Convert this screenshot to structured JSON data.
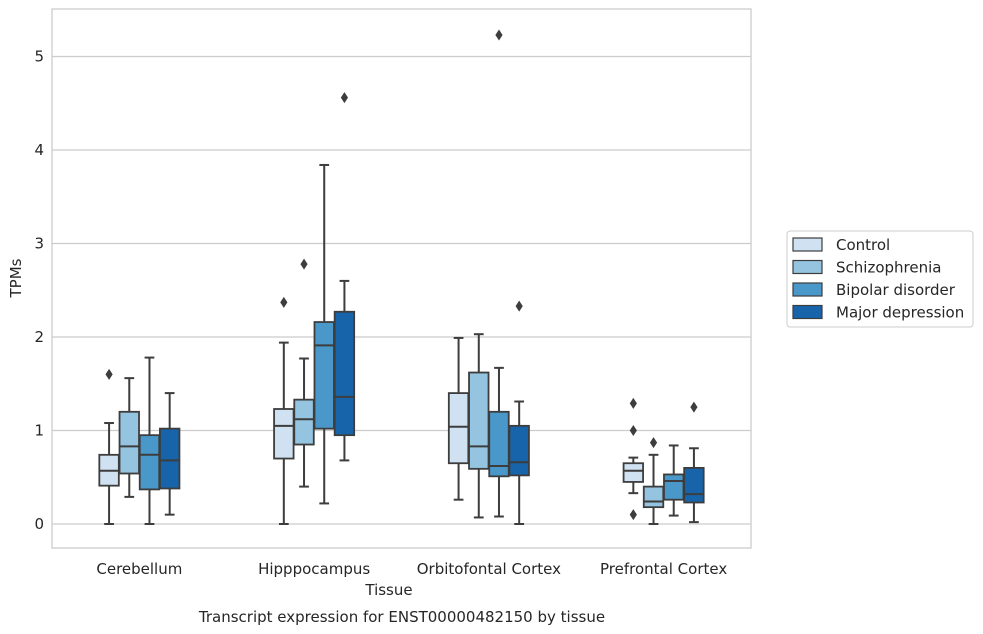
{
  "caption": "Transcript expression for ENST00000482150 by tissue",
  "chart_data": {
    "type": "box",
    "title": "",
    "xlabel": "Tissue",
    "ylabel": "TPMs",
    "ylim": [
      -0.25,
      5.5
    ],
    "yticks": [
      0,
      1,
      2,
      3,
      4,
      5
    ],
    "grid": true,
    "legend_position": "right",
    "categories": [
      "Cerebellum",
      "Hipppocampus",
      "Orbitofontal Cortex",
      "Prefrontal Cortex"
    ],
    "series": [
      {
        "name": "Control",
        "color": "#d0e1f2",
        "boxes": [
          {
            "whislo": 0.0,
            "q1": 0.41,
            "med": 0.57,
            "q3": 0.74,
            "whishi": 1.08,
            "fliers": [
              1.6
            ]
          },
          {
            "whislo": 0.0,
            "q1": 0.7,
            "med": 1.05,
            "q3": 1.23,
            "whishi": 1.94,
            "fliers": [
              2.37
            ]
          },
          {
            "whislo": 0.26,
            "q1": 0.65,
            "med": 1.04,
            "q3": 1.4,
            "whishi": 1.99,
            "fliers": []
          },
          {
            "whislo": 0.33,
            "q1": 0.45,
            "med": 0.57,
            "q3": 0.65,
            "whishi": 0.71,
            "fliers": [
              0.1,
              1.0,
              1.29
            ]
          }
        ]
      },
      {
        "name": "Schizophrenia",
        "color": "#94c4df",
        "boxes": [
          {
            "whislo": 0.29,
            "q1": 0.54,
            "med": 0.83,
            "q3": 1.2,
            "whishi": 1.56,
            "fliers": []
          },
          {
            "whislo": 0.4,
            "q1": 0.85,
            "med": 1.12,
            "q3": 1.33,
            "whishi": 1.77,
            "fliers": [
              2.78
            ]
          },
          {
            "whislo": 0.07,
            "q1": 0.59,
            "med": 0.83,
            "q3": 1.62,
            "whishi": 2.03,
            "fliers": []
          },
          {
            "whislo": 0.0,
            "q1": 0.18,
            "med": 0.24,
            "q3": 0.4,
            "whishi": 0.74,
            "fliers": [
              0.87
            ]
          }
        ]
      },
      {
        "name": "Bipolar disorder",
        "color": "#4a98c9",
        "boxes": [
          {
            "whislo": 0.0,
            "q1": 0.37,
            "med": 0.74,
            "q3": 0.95,
            "whishi": 1.78,
            "fliers": []
          },
          {
            "whislo": 0.22,
            "q1": 1.02,
            "med": 1.91,
            "q3": 2.16,
            "whishi": 3.84,
            "fliers": []
          },
          {
            "whislo": 0.08,
            "q1": 0.51,
            "med": 0.62,
            "q3": 1.2,
            "whishi": 1.67,
            "fliers": [
              5.23
            ]
          },
          {
            "whislo": 0.09,
            "q1": 0.26,
            "med": 0.46,
            "q3": 0.53,
            "whishi": 0.84,
            "fliers": []
          }
        ]
      },
      {
        "name": "Major depression",
        "color": "#1764ab",
        "boxes": [
          {
            "whislo": 0.1,
            "q1": 0.38,
            "med": 0.68,
            "q3": 1.02,
            "whishi": 1.4,
            "fliers": []
          },
          {
            "whislo": 0.68,
            "q1": 0.95,
            "med": 1.36,
            "q3": 2.27,
            "whishi": 2.6,
            "fliers": [
              4.56
            ]
          },
          {
            "whislo": 0.0,
            "q1": 0.52,
            "med": 0.66,
            "q3": 1.05,
            "whishi": 1.31,
            "fliers": [
              2.33
            ]
          },
          {
            "whislo": 0.02,
            "q1": 0.23,
            "med": 0.32,
            "q3": 0.6,
            "whishi": 0.81,
            "fliers": [
              1.25
            ]
          }
        ]
      }
    ]
  }
}
